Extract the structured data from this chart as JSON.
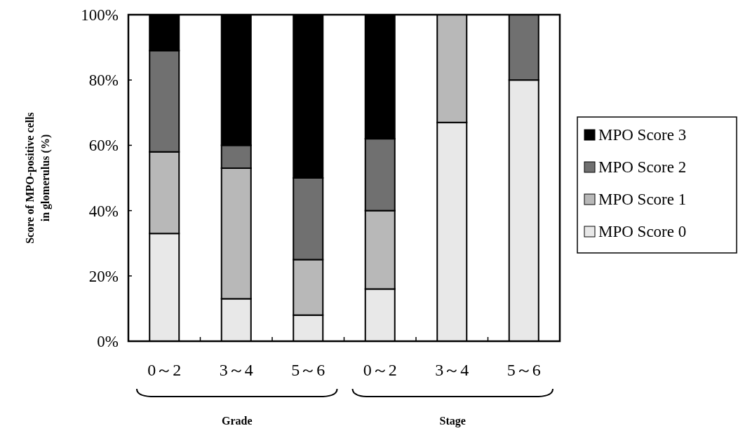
{
  "chart_data": {
    "type": "bar",
    "stacked": true,
    "ylabel": "Score of MPO-positive cells\nin glomerulus (%)",
    "categories": [
      "0～2",
      "3～4",
      "5～6",
      "0～2",
      "3～4",
      "5～6"
    ],
    "ylim": [
      0,
      100
    ],
    "yticks": [
      {
        "value": 0,
        "label": "0%"
      },
      {
        "value": 20,
        "label": "20%"
      },
      {
        "value": 40,
        "label": "40%"
      },
      {
        "value": 60,
        "label": "60%"
      },
      {
        "value": 80,
        "label": "80%"
      },
      {
        "value": 100,
        "label": "100%"
      }
    ],
    "series": [
      {
        "name": "MPO Score 0",
        "color": "#e8e8e8",
        "values": [
          33,
          13,
          8,
          16,
          67,
          80
        ]
      },
      {
        "name": "MPO Score 1",
        "color": "#b8b8b8",
        "values": [
          25,
          40,
          17,
          24,
          33,
          0
        ]
      },
      {
        "name": "MPO Score 2",
        "color": "#707070",
        "values": [
          31,
          7,
          25,
          22,
          0,
          20
        ]
      },
      {
        "name": "MPO Score 3",
        "color": "#000000",
        "values": [
          11,
          40,
          50,
          38,
          0,
          0
        ]
      }
    ],
    "legend": "right",
    "annotations": [
      "Grade",
      "Stage"
    ]
  }
}
